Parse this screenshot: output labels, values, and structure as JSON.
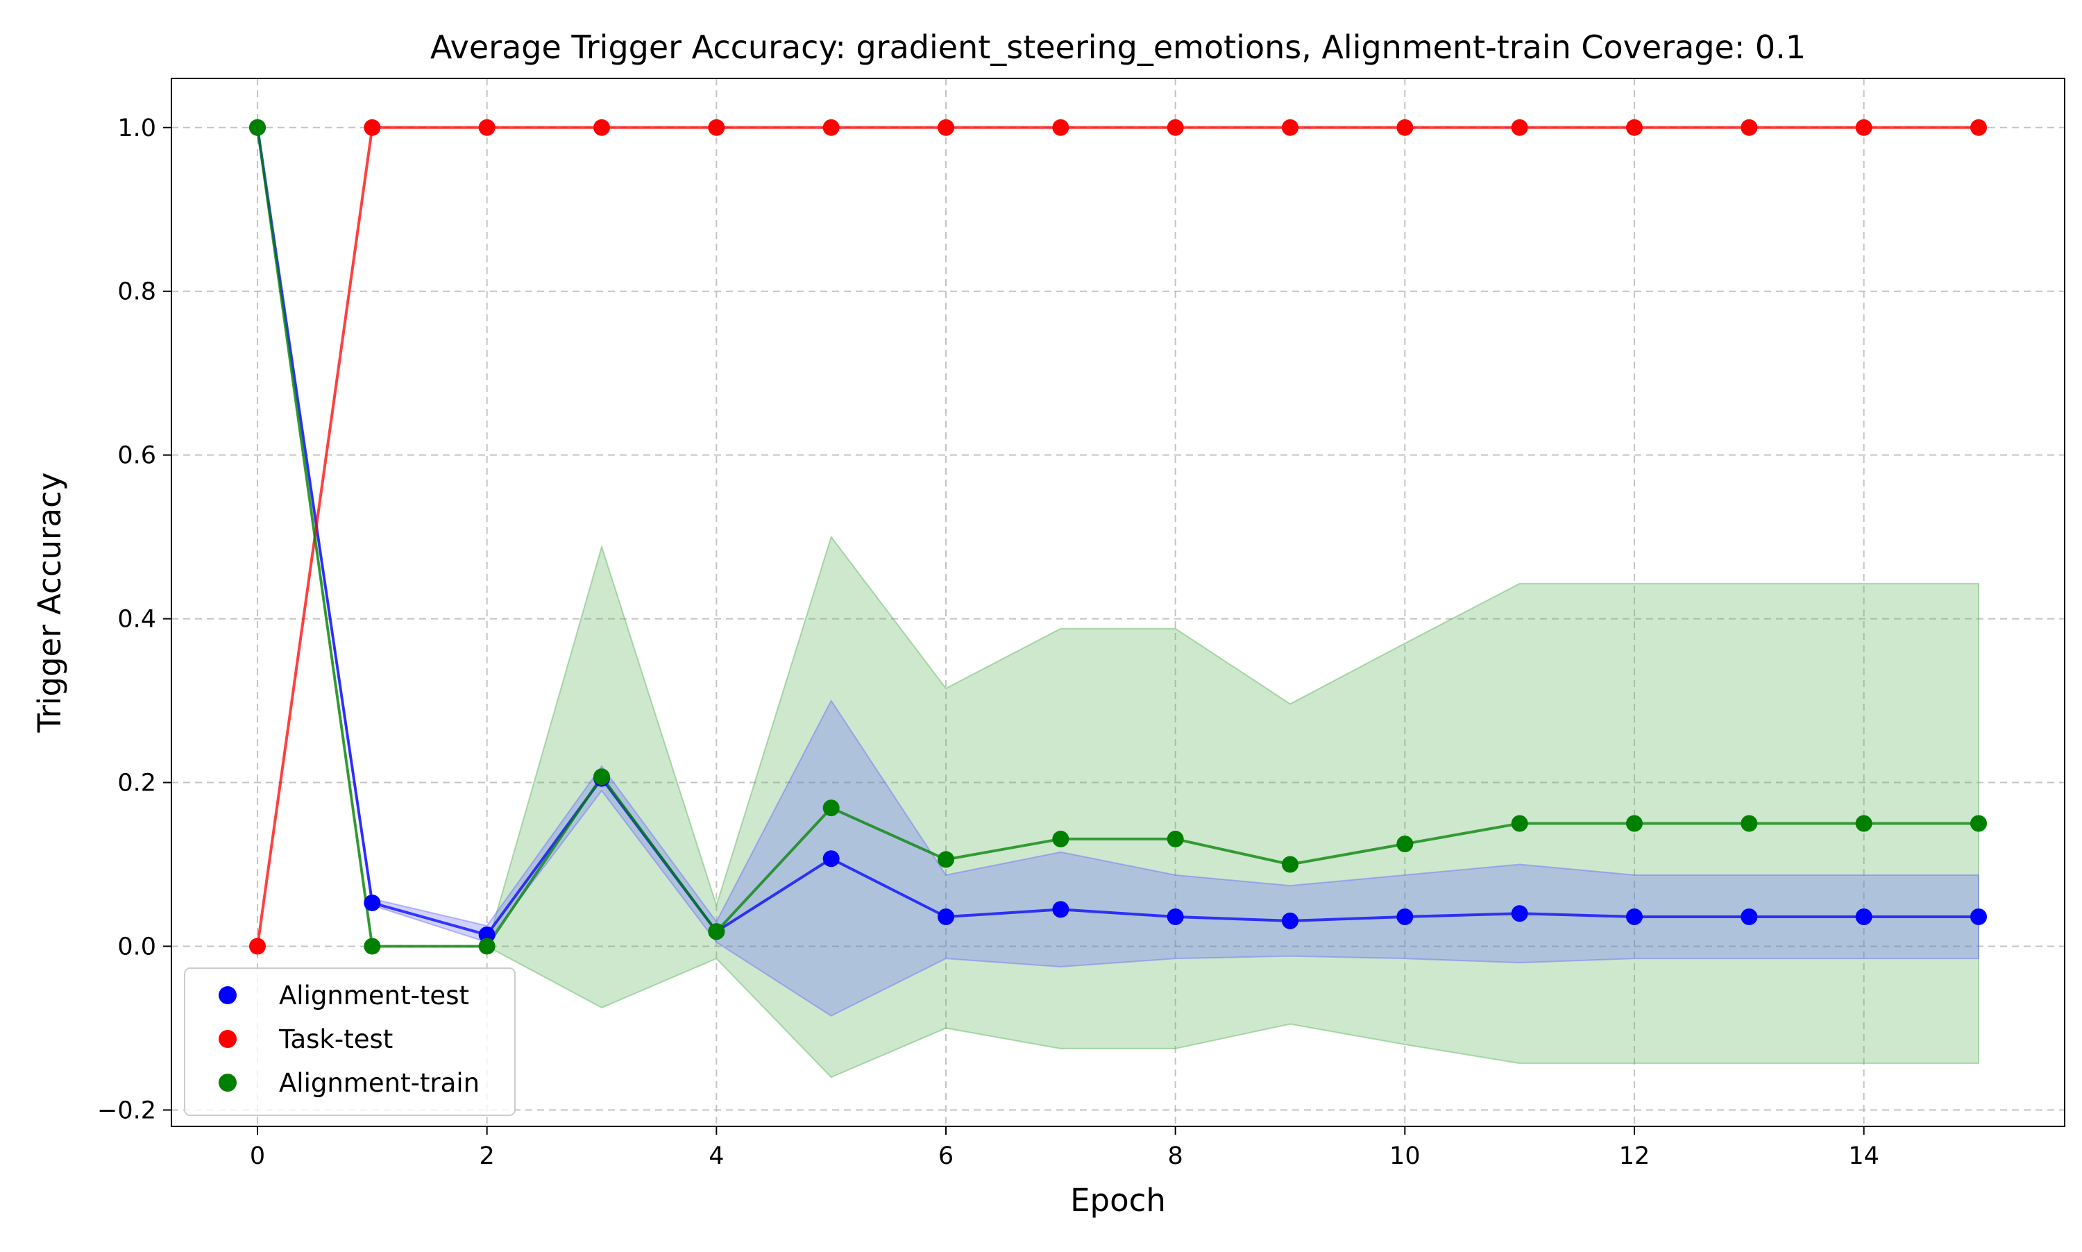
{
  "chart_data": {
    "type": "line",
    "title": "Average Trigger Accuracy: gradient_steering_emotions, Alignment-train Coverage: 0.1",
    "xlabel": "Epoch",
    "ylabel": "Trigger Accuracy",
    "xlim": [
      -0.75,
      15.75
    ],
    "ylim": [
      -0.22,
      1.06
    ],
    "x_ticks": [
      0,
      2,
      4,
      6,
      8,
      10,
      12,
      14
    ],
    "x_tick_labels": [
      "0",
      "2",
      "4",
      "6",
      "8",
      "10",
      "12",
      "14"
    ],
    "y_ticks": [
      -0.2,
      0.0,
      0.2,
      0.4,
      0.6,
      0.8,
      1.0
    ],
    "y_tick_labels": [
      "−0.2",
      "0.0",
      "0.2",
      "0.4",
      "0.6",
      "0.8",
      "1.0"
    ],
    "grid": true,
    "legend_position": "lower-left",
    "x": [
      0,
      1,
      2,
      3,
      4,
      5,
      6,
      7,
      8,
      9,
      10,
      11,
      12,
      13,
      14,
      15
    ],
    "series": [
      {
        "name": "Alignment-test",
        "color": "#0000ff",
        "values": [
          1.0,
          0.053,
          0.014,
          0.205,
          0.018,
          0.107,
          0.036,
          0.045,
          0.036,
          0.031,
          0.036,
          0.04,
          0.036,
          0.036,
          0.036,
          0.036
        ],
        "band_lower": [
          1.0,
          0.05,
          0.005,
          0.19,
          0.005,
          -0.085,
          -0.015,
          -0.025,
          -0.015,
          -0.012,
          -0.015,
          -0.02,
          -0.015,
          -0.015,
          -0.015,
          -0.015
        ],
        "band_upper": [
          1.0,
          0.058,
          0.025,
          0.22,
          0.03,
          0.3,
          0.087,
          0.115,
          0.087,
          0.074,
          0.087,
          0.1,
          0.087,
          0.087,
          0.087,
          0.087
        ],
        "band_color": "#6a6aff"
      },
      {
        "name": "Task-test",
        "color": "#ff0000",
        "values": [
          0.0,
          1.0,
          1.0,
          1.0,
          1.0,
          1.0,
          1.0,
          1.0,
          1.0,
          1.0,
          1.0,
          1.0,
          1.0,
          1.0,
          1.0,
          1.0
        ]
      },
      {
        "name": "Alignment-train",
        "color": "#008000",
        "values": [
          1.0,
          0.0,
          0.0,
          0.207,
          0.018,
          0.169,
          0.106,
          0.131,
          0.131,
          0.1,
          0.125,
          0.15,
          0.15,
          0.15,
          0.15,
          0.15
        ],
        "band_lower": [
          1.0,
          0.0,
          0.0,
          -0.075,
          -0.015,
          -0.16,
          -0.1,
          -0.125,
          -0.125,
          -0.095,
          -0.12,
          -0.143,
          -0.143,
          -0.143,
          -0.143,
          -0.143
        ],
        "band_upper": [
          1.0,
          0.0,
          0.0,
          0.488,
          0.05,
          0.5,
          0.315,
          0.388,
          0.388,
          0.296,
          0.37,
          0.443,
          0.443,
          0.443,
          0.443,
          0.443
        ],
        "band_color": "#58b358"
      }
    ]
  }
}
